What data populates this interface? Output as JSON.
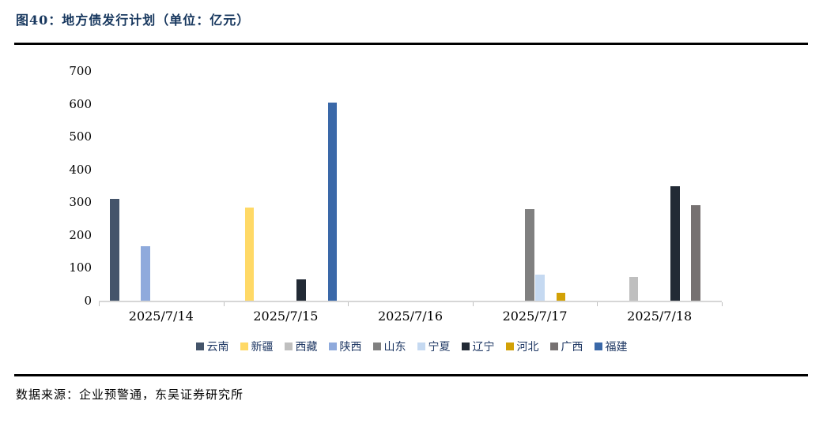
{
  "header": {
    "title": "图40：地方债发行计划（单位：亿元）"
  },
  "footer": {
    "source": "数据来源：企业预警通，东吴证券研究所"
  },
  "chart_data": {
    "type": "bar",
    "title": "图40：地方债发行计划（单位：亿元）",
    "unit": "亿元",
    "xlabel": "",
    "ylabel": "",
    "ylim": [
      0,
      700
    ],
    "y_ticks": [
      0,
      100,
      200,
      300,
      400,
      500,
      600,
      700
    ],
    "grid": false,
    "legend_position": "bottom",
    "categories": [
      "2025/7/14",
      "2025/7/15",
      "2025/7/16",
      "2025/7/17",
      "2025/7/18"
    ],
    "series": [
      {
        "name": "云南",
        "color": "#44546A",
        "values": [
          310,
          0,
          0,
          0,
          0
        ]
      },
      {
        "name": "新疆",
        "color": "#FFD966",
        "values": [
          0,
          285,
          0,
          0,
          0
        ]
      },
      {
        "name": "西藏",
        "color": "#BFBFBF",
        "values": [
          0,
          0,
          0,
          0,
          72
        ]
      },
      {
        "name": "陕西",
        "color": "#8FAADC",
        "values": [
          165,
          0,
          0,
          0,
          0
        ]
      },
      {
        "name": "山东",
        "color": "#808080",
        "values": [
          0,
          0,
          0,
          280,
          0
        ]
      },
      {
        "name": "宁夏",
        "color": "#C5D9F1",
        "values": [
          0,
          0,
          0,
          80,
          0
        ]
      },
      {
        "name": "辽宁",
        "color": "#222A35",
        "values": [
          0,
          65,
          0,
          0,
          350
        ]
      },
      {
        "name": "河北",
        "color": "#D2A106",
        "values": [
          0,
          0,
          0,
          25,
          0
        ]
      },
      {
        "name": "广西",
        "color": "#767171",
        "values": [
          0,
          0,
          0,
          0,
          290
        ]
      },
      {
        "name": "福建",
        "color": "#3A68A8",
        "values": [
          0,
          603,
          0,
          0,
          0
        ]
      }
    ]
  }
}
